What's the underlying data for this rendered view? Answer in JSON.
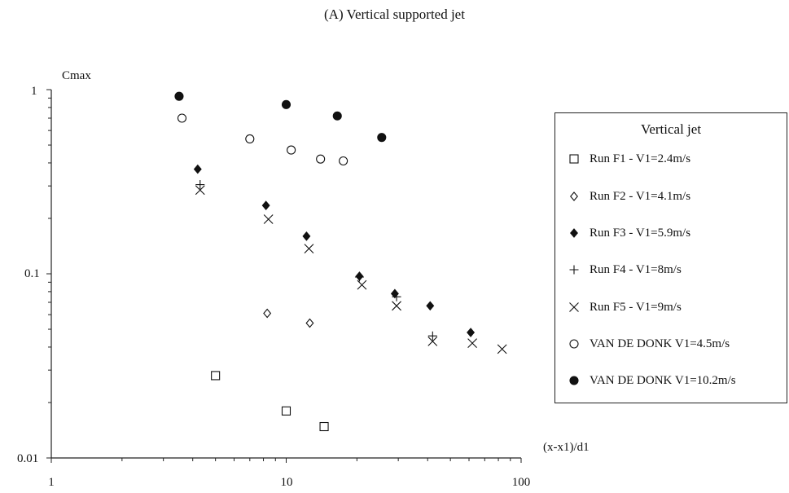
{
  "chart_data": {
    "type": "scatter",
    "title": "(A) Vertical supported jet",
    "xlabel": "(x-x1)/d1",
    "ylabel": "Cmax",
    "xscale": "log",
    "yscale": "log",
    "xlim": [
      1,
      100
    ],
    "ylim": [
      0.01,
      1
    ],
    "x_ticks": [
      "1",
      "10",
      "100"
    ],
    "y_ticks": [
      "0.01",
      "0.1",
      "1"
    ],
    "grid": false,
    "legend_title": "Vertical jet",
    "legend_position": "right",
    "series": [
      {
        "name": "Run F1 - V1=2.4m/s",
        "marker": "open-square",
        "points": [
          [
            5.0,
            0.028
          ],
          [
            10.0,
            0.018
          ],
          [
            14.5,
            0.0148
          ]
        ]
      },
      {
        "name": "Run F2 - V1=4.1m/s",
        "marker": "open-diamond",
        "points": [
          [
            8.3,
            0.061
          ],
          [
            12.6,
            0.054
          ]
        ]
      },
      {
        "name": "Run F3 - V1=5.9m/s",
        "marker": "filled-diamond",
        "points": [
          [
            4.2,
            0.37
          ],
          [
            8.2,
            0.235
          ],
          [
            12.2,
            0.16
          ],
          [
            20.5,
            0.097
          ],
          [
            29.0,
            0.078
          ],
          [
            41.0,
            0.067
          ],
          [
            61.0,
            0.048
          ]
        ]
      },
      {
        "name": "Run F4 - V1=8m/s",
        "marker": "plus",
        "points": [
          [
            4.3,
            0.305
          ],
          [
            20.5,
            0.096
          ],
          [
            29.5,
            0.075
          ],
          [
            42.0,
            0.046
          ]
        ]
      },
      {
        "name": "Run F5 - V1=9m/s",
        "marker": "cross",
        "points": [
          [
            4.3,
            0.285
          ],
          [
            8.4,
            0.198
          ],
          [
            12.5,
            0.137
          ],
          [
            21.0,
            0.087
          ],
          [
            29.5,
            0.067
          ],
          [
            42.0,
            0.043
          ],
          [
            62.0,
            0.042
          ],
          [
            83.0,
            0.039
          ]
        ]
      },
      {
        "name": "VAN DE DONK V1=4.5m/s",
        "marker": "open-circle",
        "points": [
          [
            3.6,
            0.7
          ],
          [
            7.0,
            0.54
          ],
          [
            10.5,
            0.47
          ],
          [
            14.0,
            0.42
          ],
          [
            17.5,
            0.41
          ]
        ]
      },
      {
        "name": "VAN DE DONK V1=10.2m/s",
        "marker": "filled-circle",
        "points": [
          [
            3.5,
            0.92
          ],
          [
            10.0,
            0.83
          ],
          [
            16.5,
            0.72
          ],
          [
            25.5,
            0.55
          ]
        ]
      }
    ]
  }
}
